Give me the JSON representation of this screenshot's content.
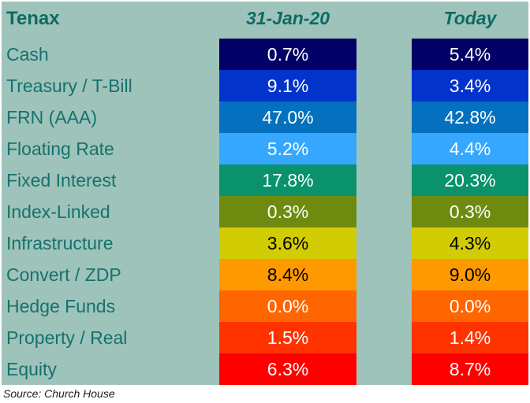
{
  "table": {
    "title": "Tenax",
    "columns": [
      "31-Jan-20",
      "Today"
    ],
    "rows": [
      {
        "label": "Cash",
        "v1": "0.7%",
        "v2": "5.4%",
        "color": "#000066",
        "text_color": "#FFFFFF"
      },
      {
        "label": "Treasury / T-Bill",
        "v1": "9.1%",
        "v2": "3.4%",
        "color": "#0433CB",
        "text_color": "#FFFFFF"
      },
      {
        "label": "FRN (AAA)",
        "v1": "47.0%",
        "v2": "42.8%",
        "color": "#0571BE",
        "text_color": "#FFFFFF"
      },
      {
        "label": "Floating Rate",
        "v1": "5.2%",
        "v2": "4.4%",
        "color": "#35A7FF",
        "text_color": "#FFFFFF"
      },
      {
        "label": "Fixed Interest",
        "v1": "17.8%",
        "v2": "20.3%",
        "color": "#09926B",
        "text_color": "#FFFFFF"
      },
      {
        "label": "Index-Linked",
        "v1": "0.3%",
        "v2": "0.3%",
        "color": "#6E8B10",
        "text_color": "#FFFFFF"
      },
      {
        "label": "Infrastructure",
        "v1": "3.6%",
        "v2": "4.3%",
        "color": "#D2CC04",
        "text_color": "#000000"
      },
      {
        "label": "Convert / ZDP",
        "v1": "8.4%",
        "v2": "9.0%",
        "color": "#FF9900",
        "text_color": "#000000"
      },
      {
        "label": "Hedge Funds",
        "v1": "0.0%",
        "v2": "0.0%",
        "color": "#FF6600",
        "text_color": "#FFFFFF"
      },
      {
        "label": "Property / Real",
        "v1": "1.5%",
        "v2": "1.4%",
        "color": "#FF3300",
        "text_color": "#FFFFFF"
      },
      {
        "label": "Equity",
        "v1": "6.3%",
        "v2": "8.7%",
        "color": "#FF0000",
        "text_color": "#FFFFFF"
      }
    ]
  },
  "source": "Source: Church House",
  "colors": {
    "panel_background": "#9EC3BA",
    "heading_text": "#0E6B63",
    "label_text": "#15726D",
    "page_background": "#FFFFFF"
  },
  "chart_data": {
    "type": "table",
    "title": "Tenax",
    "categories": [
      "Cash",
      "Treasury / T-Bill",
      "FRN (AAA)",
      "Floating Rate",
      "Fixed Interest",
      "Index-Linked",
      "Infrastructure",
      "Convert / ZDP",
      "Hedge Funds",
      "Property / Real",
      "Equity"
    ],
    "series": [
      {
        "name": "31-Jan-20",
        "values": [
          0.7,
          9.1,
          47.0,
          5.2,
          17.8,
          0.3,
          3.6,
          8.4,
          0.0,
          1.5,
          6.3
        ]
      },
      {
        "name": "Today",
        "values": [
          5.4,
          3.4,
          42.8,
          4.4,
          20.3,
          0.3,
          4.3,
          9.0,
          0.0,
          1.4,
          8.7
        ]
      }
    ],
    "unit": "%",
    "row_colors": [
      "#000066",
      "#0433CB",
      "#0571BE",
      "#35A7FF",
      "#09926B",
      "#6E8B10",
      "#D2CC04",
      "#FF9900",
      "#FF6600",
      "#FF3300",
      "#FF0000"
    ],
    "annotations": [
      "Source: Church House"
    ]
  }
}
